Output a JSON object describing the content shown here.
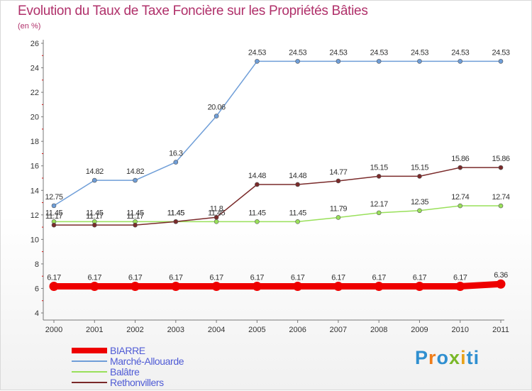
{
  "header": {
    "title": "Evolution du Taux de Taxe Foncière sur les Propriétés Bâties",
    "unit": "(en %)"
  },
  "brand": {
    "logo_text": "Proxiti",
    "letters": [
      "P",
      "r",
      "o",
      "x",
      "i",
      "ti"
    ]
  },
  "chart_data": {
    "type": "line",
    "x": [
      "2000",
      "2001",
      "2002",
      "2003",
      "2004",
      "2005",
      "2006",
      "2007",
      "2008",
      "2009",
      "2010",
      "2011"
    ],
    "ylim": [
      4,
      26
    ],
    "yticks": [
      4,
      6,
      8,
      10,
      12,
      14,
      16,
      18,
      20,
      22,
      24,
      26
    ],
    "grid": false,
    "legend_position": "bottom-left",
    "series": [
      {
        "name": "BIARRE",
        "color": "#ee0000",
        "values": [
          6.17,
          6.17,
          6.17,
          6.17,
          6.17,
          6.17,
          6.17,
          6.17,
          6.17,
          6.17,
          6.17,
          6.36
        ],
        "labels": [
          "6.17",
          "6.17",
          "6.17",
          "6.17",
          "6.17",
          "6.17",
          "6.17",
          "6.17",
          "6.17",
          "6.17",
          "6.17",
          "6.36"
        ]
      },
      {
        "name": "Marché-Allouarde",
        "color": "#6f9ed8",
        "values": [
          12.75,
          14.82,
          14.82,
          16.3,
          20.06,
          24.53,
          24.53,
          24.53,
          24.53,
          24.53,
          24.53,
          24.53
        ],
        "labels": [
          "12.75",
          "14.82",
          "14.82",
          "16.3",
          "20.06",
          "24.53",
          "24.53",
          "24.53",
          "24.53",
          "24.53",
          "24.53",
          "24.53"
        ]
      },
      {
        "name": "Balâtre",
        "color": "#99e05a",
        "values": [
          11.45,
          11.45,
          11.45,
          11.45,
          11.45,
          11.45,
          11.45,
          11.79,
          12.17,
          12.35,
          12.74,
          12.74
        ],
        "labels": [
          "11.45",
          "11.45",
          "11.45",
          "11.45",
          "11.45",
          "11.45",
          "11.45",
          "11.79",
          "12.17",
          "12.35",
          "12.74",
          "12.74"
        ]
      },
      {
        "name": "Rethonvillers",
        "color": "#7a2a2a",
        "values": [
          11.17,
          11.17,
          11.17,
          11.45,
          11.8,
          14.48,
          14.48,
          14.77,
          15.15,
          15.15,
          15.86,
          15.86
        ],
        "labels": [
          "11.17",
          "11.17",
          "11.17",
          "11.45",
          "11.8",
          "14.48",
          "14.48",
          "14.77",
          "15.15",
          "15.15",
          "15.86",
          "15.86"
        ]
      }
    ]
  }
}
